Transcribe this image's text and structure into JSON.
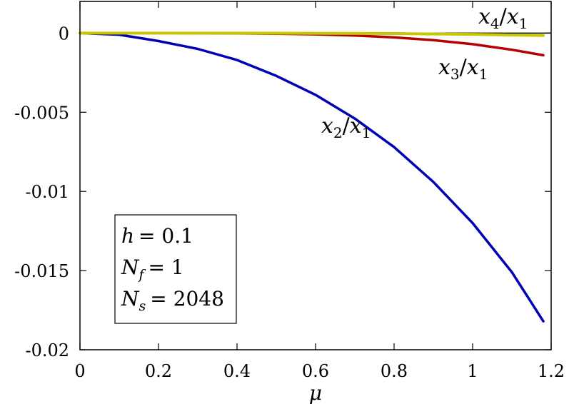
{
  "chart_data": {
    "type": "line",
    "xlabel": "μ",
    "ylabel": "",
    "xlim": [
      0,
      1.2
    ],
    "ylim": [
      -0.02,
      0.002
    ],
    "xticks": [
      0,
      0.2,
      0.4,
      0.6,
      0.8,
      1,
      1.2
    ],
    "xtick_labels": [
      "0",
      "0.2",
      "0.4",
      "0.6",
      "0.8",
      "1",
      "1.2"
    ],
    "yticks": [
      0,
      -0.005,
      -0.01,
      -0.015,
      -0.02
    ],
    "ytick_labels": [
      "0",
      "-0.005",
      "-0.01",
      "-0.015",
      "-0.02"
    ],
    "zero_line": true,
    "grid": false,
    "series": [
      {
        "name": "x2/x1",
        "label_main": "x",
        "label_sub": "2",
        "label_den": "x",
        "label_den_sub": "1",
        "color": "#0000b4",
        "x": [
          0,
          0.1,
          0.2,
          0.3,
          0.4,
          0.5,
          0.6,
          0.7,
          0.8,
          0.9,
          1.0,
          1.1,
          1.18
        ],
        "y": [
          0,
          -0.0001,
          -0.0005,
          -0.001,
          -0.0017,
          -0.0027,
          -0.0039,
          -0.0054,
          -0.0072,
          -0.0094,
          -0.012,
          -0.0151,
          -0.0182
        ]
      },
      {
        "name": "x3/x1",
        "label_main": "x",
        "label_sub": "3",
        "label_den": "x",
        "label_den_sub": "1",
        "color": "#b40000",
        "x": [
          0,
          0.2,
          0.4,
          0.5,
          0.6,
          0.7,
          0.8,
          0.9,
          1.0,
          1.1,
          1.18
        ],
        "y": [
          0,
          0,
          -2e-05,
          -4e-05,
          -8e-05,
          -0.00015,
          -0.00027,
          -0.00045,
          -0.0007,
          -0.00105,
          -0.0014
        ]
      },
      {
        "name": "x4/x1",
        "label_main": "x",
        "label_sub": "4",
        "label_den": "x",
        "label_den_sub": "1",
        "color": "#c8c800",
        "x": [
          0,
          0.4,
          0.8,
          1.0,
          1.18
        ],
        "y": [
          0,
          0,
          -3e-05,
          -8e-05,
          -0.00015
        ]
      }
    ],
    "annotation": {
      "lines": [
        {
          "var": "h",
          "sub": "",
          "eq": "= 0.1"
        },
        {
          "var": "N",
          "sub": "f",
          "eq": "= 1"
        },
        {
          "var": "N",
          "sub": "s",
          "eq": "= 2048"
        }
      ],
      "placement": "bottom-left"
    }
  }
}
